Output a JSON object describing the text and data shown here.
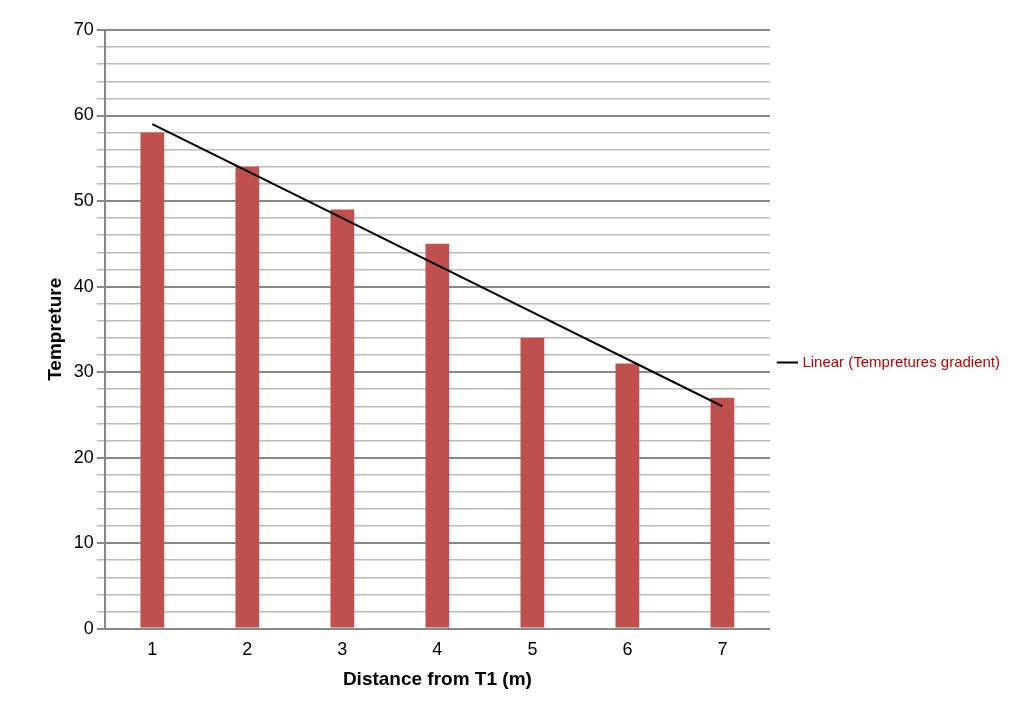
{
  "chart_data": {
    "type": "bar",
    "xlabel": "Distance from T1 (m)",
    "ylabel": "Tempreture",
    "categories": [
      "1",
      "2",
      "3",
      "4",
      "5",
      "6",
      "7"
    ],
    "series": [
      {
        "color": "#c0504d",
        "values": [
          58,
          54,
          49,
          45,
          34,
          31,
          27
        ]
      },
      {
        "type": "line",
        "name": "Linear (Tempretures gradient)",
        "color": "#000000",
        "x": [
          "1",
          "7"
        ],
        "values": [
          59,
          26
        ]
      }
    ],
    "ylim": [
      0,
      70
    ],
    "yticks": [
      0,
      {
        "value": 2,
        "label": null
      },
      {
        "value": 4,
        "label": null
      },
      {
        "value": 6,
        "label": null
      },
      {
        "value": 8,
        "label": null
      },
      10,
      {
        "value": 12,
        "label": null
      },
      {
        "value": 14,
        "label": null
      },
      {
        "value": 16,
        "label": null
      },
      {
        "value": 18,
        "label": null
      },
      20,
      {
        "value": 22,
        "label": null
      },
      {
        "value": 24,
        "label": null
      },
      {
        "value": 26,
        "label": null
      },
      {
        "value": 28,
        "label": null
      },
      30,
      {
        "value": 32,
        "label": null
      },
      {
        "value": 34,
        "label": null
      },
      {
        "value": 36,
        "label": null
      },
      {
        "value": 38,
        "label": null
      },
      40,
      {
        "value": 42,
        "label": null
      },
      {
        "value": 44,
        "label": null
      },
      {
        "value": 46,
        "label": null
      },
      {
        "value": 48,
        "label": null
      },
      50,
      {
        "value": 52,
        "label": null
      },
      {
        "value": 54,
        "label": null
      },
      {
        "value": 56,
        "label": null
      },
      {
        "value": 58,
        "label": null
      },
      60,
      {
        "value": 62,
        "label": null
      },
      {
        "value": 64,
        "label": null
      },
      {
        "value": 66,
        "label": null
      },
      {
        "value": 68,
        "label": null
      },
      70
    ],
    "grid": "y",
    "legend": "right",
    "marker": "none"
  }
}
